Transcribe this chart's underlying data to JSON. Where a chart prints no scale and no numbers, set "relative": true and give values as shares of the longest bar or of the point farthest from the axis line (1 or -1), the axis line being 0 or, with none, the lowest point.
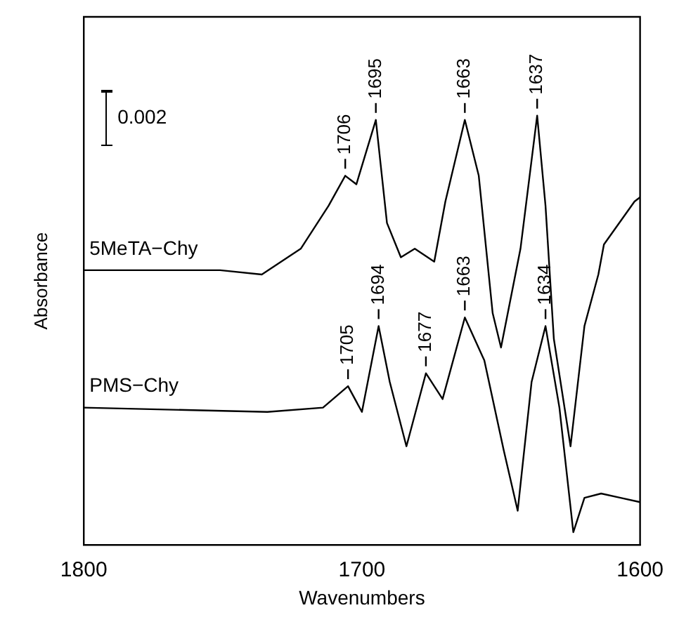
{
  "chart_data": {
    "type": "line",
    "relative": true,
    "xlabel": "Wavenumbers",
    "ylabel": "Absorbance",
    "xlim": [
      1800,
      1600
    ],
    "xticks": [
      1800,
      1700,
      1600
    ],
    "legend": false,
    "grid": false,
    "marker": "none",
    "line_style": "solid",
    "series": [
      {
        "name": "5MeTA−Chy",
        "color": "#000000",
        "x": [
          1800,
          1751,
          1736,
          1722,
          1712,
          1706,
          1702,
          1695,
          1691,
          1686,
          1681,
          1674,
          1670,
          1663,
          1658,
          1653,
          1650,
          1643,
          1637,
          1634,
          1631,
          1625,
          1620,
          1615,
          1613,
          1602,
          1600
        ],
        "values": [
          0.64,
          0.64,
          0.63,
          0.69,
          0.79,
          0.86,
          0.84,
          0.99,
          0.75,
          0.67,
          0.69,
          0.66,
          0.8,
          0.99,
          0.86,
          0.54,
          0.46,
          0.69,
          1.0,
          0.79,
          0.48,
          0.23,
          0.51,
          0.63,
          0.7,
          0.8,
          0.81
        ]
      },
      {
        "name": "PMS−Chy",
        "color": "#000000",
        "x": [
          1800,
          1734,
          1714,
          1705,
          1700,
          1694,
          1690,
          1684,
          1677,
          1671,
          1663,
          1656,
          1649,
          1644,
          1639,
          1634,
          1629,
          1624,
          1620,
          1614,
          1607,
          1600
        ],
        "values": [
          0.32,
          0.31,
          0.32,
          0.37,
          0.31,
          0.51,
          0.38,
          0.23,
          0.4,
          0.34,
          0.53,
          0.43,
          0.22,
          0.08,
          0.38,
          0.51,
          0.32,
          0.03,
          0.11,
          0.12,
          0.11,
          0.1
        ]
      }
    ],
    "annotations": [
      "0.002",
      {
        "text": "1706",
        "x": 1706,
        "y": 0.86
      },
      {
        "text": "1695",
        "x": 1695,
        "y": 0.99
      },
      {
        "text": "1663",
        "x": 1663,
        "y": 0.99
      },
      {
        "text": "1637",
        "x": 1637,
        "y": 1.0
      },
      {
        "text": "1705",
        "x": 1705,
        "y": 0.37
      },
      {
        "text": "1694",
        "x": 1694,
        "y": 0.51
      },
      {
        "text": "1677",
        "x": 1677,
        "y": 0.4
      },
      {
        "text": "1663",
        "x": 1663,
        "y": 0.53
      },
      {
        "text": "1634",
        "x": 1634,
        "y": 0.51
      }
    ]
  }
}
